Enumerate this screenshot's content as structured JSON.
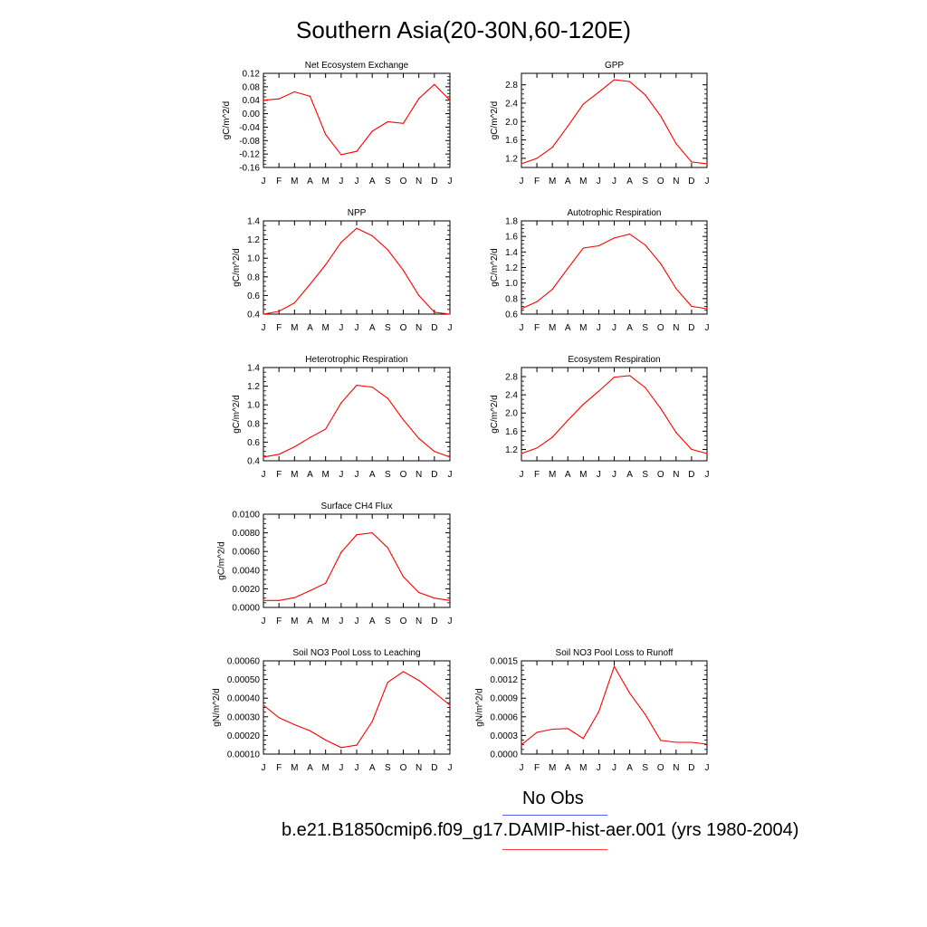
{
  "figure": {
    "title": "Southern Asia(20-30N,60-120E)",
    "legend_obs": "No Obs",
    "legend_case": "b.e21.B1850cmip6.f09_g17.DAMIP-hist-aer.001 (yrs 1980-2004)",
    "colors": {
      "line": "#ff0000",
      "obs_line": "#5b5bff",
      "case_line": "#ff4040"
    }
  },
  "chart_data": [
    {
      "type": "line",
      "title": "Net Ecosystem Exchange",
      "ylabel": "gC/m^2/d",
      "categories": [
        "J",
        "F",
        "M",
        "A",
        "M",
        "J",
        "J",
        "A",
        "S",
        "O",
        "N",
        "D",
        "J"
      ],
      "ylim": [
        -0.16,
        0.12
      ],
      "yticks": [
        "0.12",
        "0.08",
        "0.04",
        "0.00",
        "-0.04",
        "-0.08",
        "-0.12",
        "-0.16"
      ],
      "ytick_values": [
        0.12,
        0.08,
        0.04,
        0.0,
        -0.04,
        -0.08,
        -0.12,
        -0.16
      ],
      "values": [
        0.04,
        0.044,
        0.065,
        0.052,
        -0.062,
        -0.122,
        -0.112,
        -0.052,
        -0.024,
        -0.029,
        0.045,
        0.087,
        0.04
      ]
    },
    {
      "type": "line",
      "title": "GPP",
      "ylabel": "gC/m^2/d",
      "categories": [
        "J",
        "F",
        "M",
        "A",
        "M",
        "J",
        "J",
        "A",
        "S",
        "O",
        "N",
        "D",
        "J"
      ],
      "ylim": [
        1.0,
        3.05
      ],
      "yticks": [
        "2.8",
        "2.4",
        "2.0",
        "1.6",
        "1.2"
      ],
      "ytick_values": [
        2.8,
        2.4,
        2.0,
        1.6,
        1.2
      ],
      "values": [
        1.08,
        1.2,
        1.44,
        1.9,
        2.38,
        2.64,
        2.91,
        2.87,
        2.58,
        2.12,
        1.52,
        1.12,
        1.08
      ]
    },
    {
      "type": "line",
      "title": "NPP",
      "ylabel": "gC/m^2/d",
      "categories": [
        "J",
        "F",
        "M",
        "A",
        "M",
        "J",
        "J",
        "A",
        "S",
        "O",
        "N",
        "D",
        "J"
      ],
      "ylim": [
        0.4,
        1.4
      ],
      "yticks": [
        "1.4",
        "1.2",
        "1.0",
        "0.8",
        "0.6",
        "0.4"
      ],
      "ytick_values": [
        1.4,
        1.2,
        1.0,
        0.8,
        0.6,
        0.4
      ],
      "values": [
        0.4,
        0.43,
        0.52,
        0.72,
        0.93,
        1.17,
        1.32,
        1.24,
        1.09,
        0.87,
        0.6,
        0.42,
        0.4
      ]
    },
    {
      "type": "line",
      "title": "Autotrophic Respiration",
      "ylabel": "gC/m^2/d",
      "categories": [
        "J",
        "F",
        "M",
        "A",
        "M",
        "J",
        "J",
        "A",
        "S",
        "O",
        "N",
        "D",
        "J"
      ],
      "ylim": [
        0.6,
        1.8
      ],
      "yticks": [
        "1.8",
        "1.6",
        "1.4",
        "1.2",
        "1.0",
        "0.8",
        "0.6"
      ],
      "ytick_values": [
        1.8,
        1.6,
        1.4,
        1.2,
        1.0,
        0.8,
        0.6
      ],
      "values": [
        0.67,
        0.76,
        0.92,
        1.19,
        1.45,
        1.48,
        1.58,
        1.63,
        1.49,
        1.25,
        0.93,
        0.7,
        0.67
      ]
    },
    {
      "type": "line",
      "title": "Heterotrophic Respiration",
      "ylabel": "gC/m^2/d",
      "categories": [
        "J",
        "F",
        "M",
        "A",
        "M",
        "J",
        "J",
        "A",
        "S",
        "O",
        "N",
        "D",
        "J"
      ],
      "ylim": [
        0.4,
        1.4
      ],
      "yticks": [
        "1.4",
        "1.2",
        "1.0",
        "0.8",
        "0.6",
        "0.4"
      ],
      "ytick_values": [
        1.4,
        1.2,
        1.0,
        0.8,
        0.6,
        0.4
      ],
      "values": [
        0.44,
        0.47,
        0.55,
        0.65,
        0.74,
        1.02,
        1.21,
        1.19,
        1.07,
        0.84,
        0.64,
        0.5,
        0.44
      ]
    },
    {
      "type": "line",
      "title": "Ecosystem Respiration",
      "ylabel": "gC/m^2/d",
      "categories": [
        "J",
        "F",
        "M",
        "A",
        "M",
        "J",
        "J",
        "A",
        "S",
        "O",
        "N",
        "D",
        "J"
      ],
      "ylim": [
        0.95,
        3.0
      ],
      "yticks": [
        "2.8",
        "2.4",
        "2.0",
        "1.6",
        "1.2"
      ],
      "ytick_values": [
        2.8,
        2.4,
        2.0,
        1.6,
        1.2
      ],
      "values": [
        1.11,
        1.23,
        1.47,
        1.84,
        2.19,
        2.48,
        2.79,
        2.82,
        2.56,
        2.1,
        1.57,
        1.2,
        1.11
      ]
    },
    {
      "type": "line",
      "title": "Surface CH4 Flux",
      "ylabel": "gC/m^2/d",
      "categories": [
        "J",
        "F",
        "M",
        "A",
        "M",
        "J",
        "J",
        "A",
        "S",
        "O",
        "N",
        "D",
        "J"
      ],
      "ylim": [
        0.0,
        0.01
      ],
      "yticks": [
        "0.0100",
        "0.0080",
        "0.0060",
        "0.0040",
        "0.0020",
        "0.0000"
      ],
      "ytick_values": [
        0.01,
        0.008,
        0.006,
        0.004,
        0.002,
        0.0
      ],
      "values": [
        0.00075,
        0.00075,
        0.00105,
        0.0018,
        0.0026,
        0.0059,
        0.0078,
        0.008,
        0.0064,
        0.0033,
        0.0016,
        0.001,
        0.00075
      ]
    },
    {
      "type": "line",
      "title": "Soil NO3 Pool Loss to Leaching",
      "ylabel": "gN/m^2/d",
      "categories": [
        "J",
        "F",
        "M",
        "A",
        "M",
        "J",
        "J",
        "A",
        "S",
        "O",
        "N",
        "D",
        "J"
      ],
      "ylim": [
        0.0001,
        0.0006
      ],
      "yticks": [
        "0.00060",
        "0.00050",
        "0.00040",
        "0.00030",
        "0.00020",
        "0.00010"
      ],
      "ytick_values": [
        0.0006,
        0.0005,
        0.0004,
        0.0003,
        0.0002,
        0.0001
      ],
      "values": [
        0.000362,
        0.000295,
        0.000258,
        0.000225,
        0.000175,
        0.000135,
        0.000148,
        0.000275,
        0.000485,
        0.000542,
        0.000495,
        0.00043,
        0.000362
      ]
    },
    {
      "type": "line",
      "title": "Soil NO3 Pool Loss to Runoff",
      "ylabel": "gN/m^2/d",
      "categories": [
        "J",
        "F",
        "M",
        "A",
        "M",
        "J",
        "J",
        "A",
        "S",
        "O",
        "N",
        "D",
        "J"
      ],
      "ylim": [
        0.0,
        0.0015
      ],
      "yticks": [
        "0.0015",
        "0.0012",
        "0.0009",
        "0.0006",
        "0.0003",
        "0.0000"
      ],
      "ytick_values": [
        0.0015,
        0.0012,
        0.0009,
        0.0006,
        0.0003,
        0.0
      ],
      "values": [
        0.00015,
        0.00035,
        0.0004,
        0.00041,
        0.00025,
        0.00068,
        0.00141,
        0.00098,
        0.00064,
        0.00022,
        0.00019,
        0.00019,
        0.00016
      ]
    }
  ]
}
